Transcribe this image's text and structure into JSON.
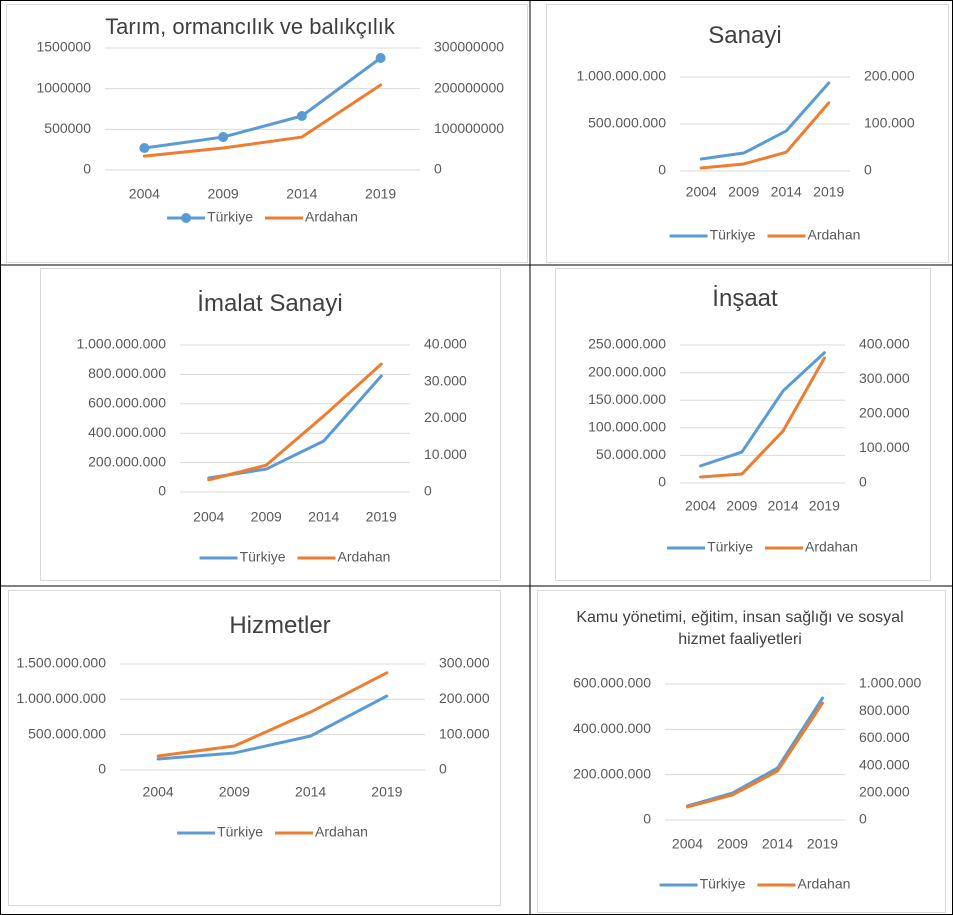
{
  "chart_data": [
    {
      "type": "line",
      "title": "Tarım, ormancılık ve balıkçılık",
      "categories": [
        "2004",
        "2009",
        "2014",
        "2019"
      ],
      "series": [
        {
          "name": "Türkiye",
          "color": "#5b9bd5",
          "marker": "circle",
          "values": [
            270000,
            405000,
            664000,
            1377000
          ]
        },
        {
          "name": "Ardahan",
          "color": "#ed7d31",
          "axis": "y2",
          "values": [
            34000000,
            54000000,
            81000000,
            209000000
          ]
        }
      ],
      "ylim": [
        0,
        1500000
      ],
      "yticks": [
        0,
        500000,
        1000000,
        1500000
      ],
      "y2lim": [
        0,
        300000000
      ],
      "y2ticks": [
        0,
        100000000,
        200000000,
        300000000
      ],
      "grid": true,
      "legend": "bottom"
    },
    {
      "type": "line",
      "title": "Sanayi",
      "categories": [
        "2004",
        "2009",
        "2014",
        "2019"
      ],
      "series": [
        {
          "name": "Türkiye",
          "color": "#5b9bd5",
          "values": [
            128000000,
            191000000,
            426000000,
            936000000
          ]
        },
        {
          "name": "Ardahan",
          "color": "#ed7d31",
          "axis": "y2",
          "values": [
            6400,
            15000,
            40000,
            145000
          ]
        }
      ],
      "ylim": [
        0,
        1000000000
      ],
      "yticks": [
        0,
        {
          "value": 500000000,
          "label": "500.000.000"
        },
        {
          "value": 1000000000,
          "label": "1.000.000.000"
        }
      ],
      "y2lim": [
        0,
        200000
      ],
      "y2ticks": [
        0,
        {
          "value": 100000,
          "label": "100.000"
        },
        {
          "value": 200000,
          "label": "200.000"
        }
      ],
      "grid": true,
      "legend": "bottom"
    },
    {
      "type": "line",
      "title": "İmalat Sanayi",
      "categories": [
        "2004",
        "2009",
        "2014",
        "2019"
      ],
      "series": [
        {
          "name": "Türkiye",
          "color": "#5b9bd5",
          "values": [
            95000000,
            156000000,
            347000000,
            789000000
          ]
        },
        {
          "name": "Ardahan",
          "color": "#ed7d31",
          "axis": "y2",
          "values": [
            3300,
            7300,
            20700,
            34800
          ]
        }
      ],
      "ylim": [
        0,
        1000000000
      ],
      "yticks": [
        0,
        {
          "value": 200000000,
          "label": "200.000.000"
        },
        {
          "value": 400000000,
          "label": "400.000.000"
        },
        {
          "value": 600000000,
          "label": "600.000.000"
        },
        {
          "value": 800000000,
          "label": "800.000.000"
        },
        {
          "value": 1000000000,
          "label": "1.000.000.000"
        }
      ],
      "y2lim": [
        0,
        40000
      ],
      "y2ticks": [
        0,
        {
          "value": 10000,
          "label": "10.000"
        },
        {
          "value": 20000,
          "label": "20.000"
        },
        {
          "value": 30000,
          "label": "30.000"
        },
        {
          "value": 40000,
          "label": "40.000"
        }
      ],
      "grid": true,
      "legend": "bottom"
    },
    {
      "type": "line",
      "title": "İnşaat",
      "categories": [
        "2004",
        "2009",
        "2014",
        "2019"
      ],
      "series": [
        {
          "name": "Türkiye",
          "color": "#5b9bd5",
          "values": [
            31000000,
            56000000,
            167000000,
            236000000
          ]
        },
        {
          "name": "Ardahan",
          "color": "#ed7d31",
          "axis": "y2",
          "values": [
            17400,
            26000,
            151000,
            362000
          ]
        }
      ],
      "ylim": [
        0,
        250000000
      ],
      "yticks": [
        0,
        {
          "value": 50000000,
          "label": "50.000.000"
        },
        {
          "value": 100000000,
          "label": "100.000.000"
        },
        {
          "value": 150000000,
          "label": "150.000.000"
        },
        {
          "value": 200000000,
          "label": "200.000.000"
        },
        {
          "value": 250000000,
          "label": "250.000.000"
        }
      ],
      "y2lim": [
        0,
        400000
      ],
      "y2ticks": [
        0,
        {
          "value": 100000,
          "label": "100.000"
        },
        {
          "value": 200000,
          "label": "200.000"
        },
        {
          "value": 300000,
          "label": "300.000"
        },
        {
          "value": 400000,
          "label": "400.000"
        }
      ],
      "grid": true,
      "legend": "bottom"
    },
    {
      "type": "line",
      "title": "Hizmetler",
      "categories": [
        "2004",
        "2009",
        "2014",
        "2019"
      ],
      "series": [
        {
          "name": "Türkiye",
          "color": "#5b9bd5",
          "values": [
            156000000,
            241000000,
            481000000,
            1047000000
          ]
        },
        {
          "name": "Ardahan",
          "color": "#ed7d31",
          "axis": "y2",
          "values": [
            39600,
            68000,
            164000,
            275000
          ]
        }
      ],
      "ylim": [
        0,
        1500000000
      ],
      "yticks": [
        0,
        {
          "value": 500000000,
          "label": "500.000.000"
        },
        {
          "value": 1000000000,
          "label": "1.000.000.000"
        },
        {
          "value": 1500000000,
          "label": "1.500.000.000"
        }
      ],
      "y2lim": [
        0,
        300000
      ],
      "y2ticks": [
        0,
        {
          "value": 100000,
          "label": "100.000"
        },
        {
          "value": 200000,
          "label": "200.000"
        },
        {
          "value": 300000,
          "label": "300.000"
        }
      ],
      "grid": true,
      "legend": "bottom"
    },
    {
      "type": "line",
      "title": "Kamu yönetimi, eğitim, insan sağlığı ve sosyal hizmet faaliyetleri",
      "categories": [
        "2004",
        "2009",
        "2014",
        "2019"
      ],
      "series": [
        {
          "name": "Türkiye",
          "color": "#5b9bd5",
          "values": [
            62000000,
            119000000,
            229000000,
            538000000
          ]
        },
        {
          "name": "Ardahan",
          "color": "#ed7d31",
          "axis": "y2",
          "values": [
            96000,
            184000,
            360000,
            860000
          ]
        }
      ],
      "ylim": [
        0,
        600000000
      ],
      "yticks": [
        0,
        {
          "value": 200000000,
          "label": "200.000.000"
        },
        {
          "value": 400000000,
          "label": "400.000.000"
        },
        {
          "value": 600000000,
          "label": "600.000.000"
        }
      ],
      "y2lim": [
        0,
        1000000
      ],
      "y2ticks": [
        0,
        {
          "value": 200000,
          "label": "200.000"
        },
        {
          "value": 400000,
          "label": "400.000"
        },
        {
          "value": 600000,
          "label": "600.000"
        },
        {
          "value": 800000,
          "label": "800.000"
        },
        {
          "value": 1000000,
          "label": "1.000.000"
        }
      ],
      "grid": true,
      "legend": "bottom"
    }
  ]
}
